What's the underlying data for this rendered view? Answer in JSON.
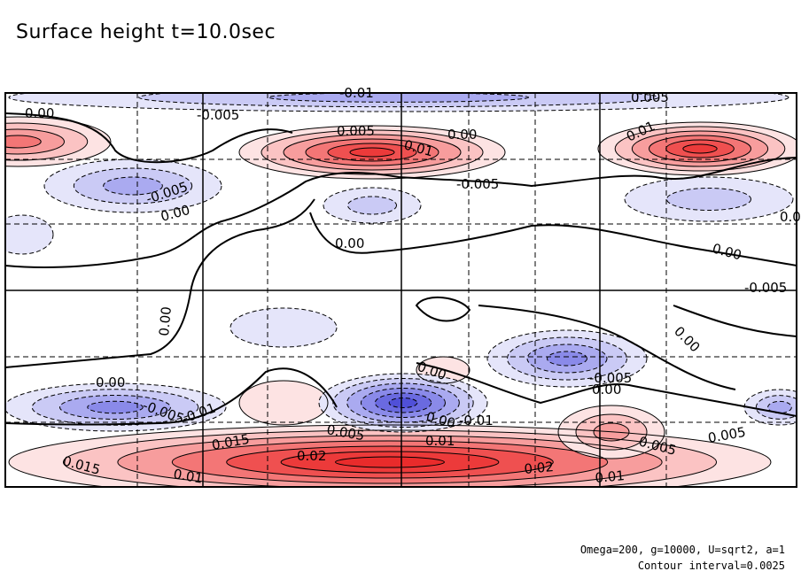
{
  "title": "Surface height t=10.0sec",
  "footnote": {
    "params": "Omega=200, g=10000, U=sqrt2, a=1",
    "interval": "Contour interval=0.0025"
  },
  "chart_data": {
    "type": "heatmap",
    "title": "Surface height t=10.0sec",
    "xlabel": "",
    "ylabel": "",
    "contour_interval": 0.0025,
    "color_scale": {
      "negative": "#3a3ae8",
      "zero": "#ffffff",
      "positive": "#ee2b2b"
    },
    "grid": {
      "solid_lines": true,
      "dashed_lines": true
    },
    "features": [
      {
        "sign": "positive",
        "peak": 0.02,
        "label": "0.02",
        "region": "lower band, broad jet"
      },
      {
        "sign": "positive",
        "peak": 0.012,
        "label": "0.01",
        "region": "upper center"
      },
      {
        "sign": "positive",
        "peak": 0.012,
        "label": "0.01",
        "region": "upper right"
      },
      {
        "sign": "positive",
        "peak": 0.008,
        "label": "0.005",
        "region": "upper left edge"
      },
      {
        "sign": "negative",
        "peak": -0.012,
        "label": "-0.01",
        "region": "lower center"
      },
      {
        "sign": "negative",
        "peak": -0.01,
        "label": "-0.01",
        "region": "lower left"
      },
      {
        "sign": "negative",
        "peak": -0.006,
        "label": "-0.005",
        "region": "upper left"
      },
      {
        "sign": "negative",
        "peak": -0.006,
        "label": "-0.005",
        "region": "lower right"
      },
      {
        "sign": "negative",
        "peak": -0.01,
        "label": "-0.01",
        "region": "top band"
      }
    ],
    "contour_labels": [
      "0.00",
      "-0.005",
      "0.005",
      "0.01",
      "-0.01",
      "0.015",
      "0.02"
    ],
    "labels": [
      {
        "text": "0.00"
      },
      {
        "text": "-0.005"
      },
      {
        "text": "-0.01"
      },
      {
        "text": "0.005"
      },
      {
        "text": "0.01"
      },
      {
        "text": "0.00"
      },
      {
        "text": "-0.005"
      },
      {
        "text": "0.005"
      },
      {
        "text": "0.01"
      },
      {
        "text": "-0.005"
      },
      {
        "text": "0.00"
      },
      {
        "text": "0.00"
      },
      {
        "text": "0.00"
      },
      {
        "text": "0.00"
      },
      {
        "text": "0.00"
      },
      {
        "text": "0.00"
      },
      {
        "text": "0.00"
      },
      {
        "text": "-0.005"
      },
      {
        "text": "-0.01"
      },
      {
        "text": "0.00"
      },
      {
        "text": "-0.01"
      },
      {
        "text": "-0.005"
      },
      {
        "text": "0.005"
      },
      {
        "text": "0.00"
      },
      {
        "text": "0.015"
      },
      {
        "text": "0.01"
      },
      {
        "text": "0.02"
      },
      {
        "text": "0.02"
      },
      {
        "text": "0.005"
      },
      {
        "text": "0.01"
      },
      {
        "text": "0.01"
      },
      {
        "text": "0.015"
      },
      {
        "text": "0.005"
      },
      {
        "text": "-0.005"
      },
      {
        "text": "0.00"
      }
    ]
  }
}
